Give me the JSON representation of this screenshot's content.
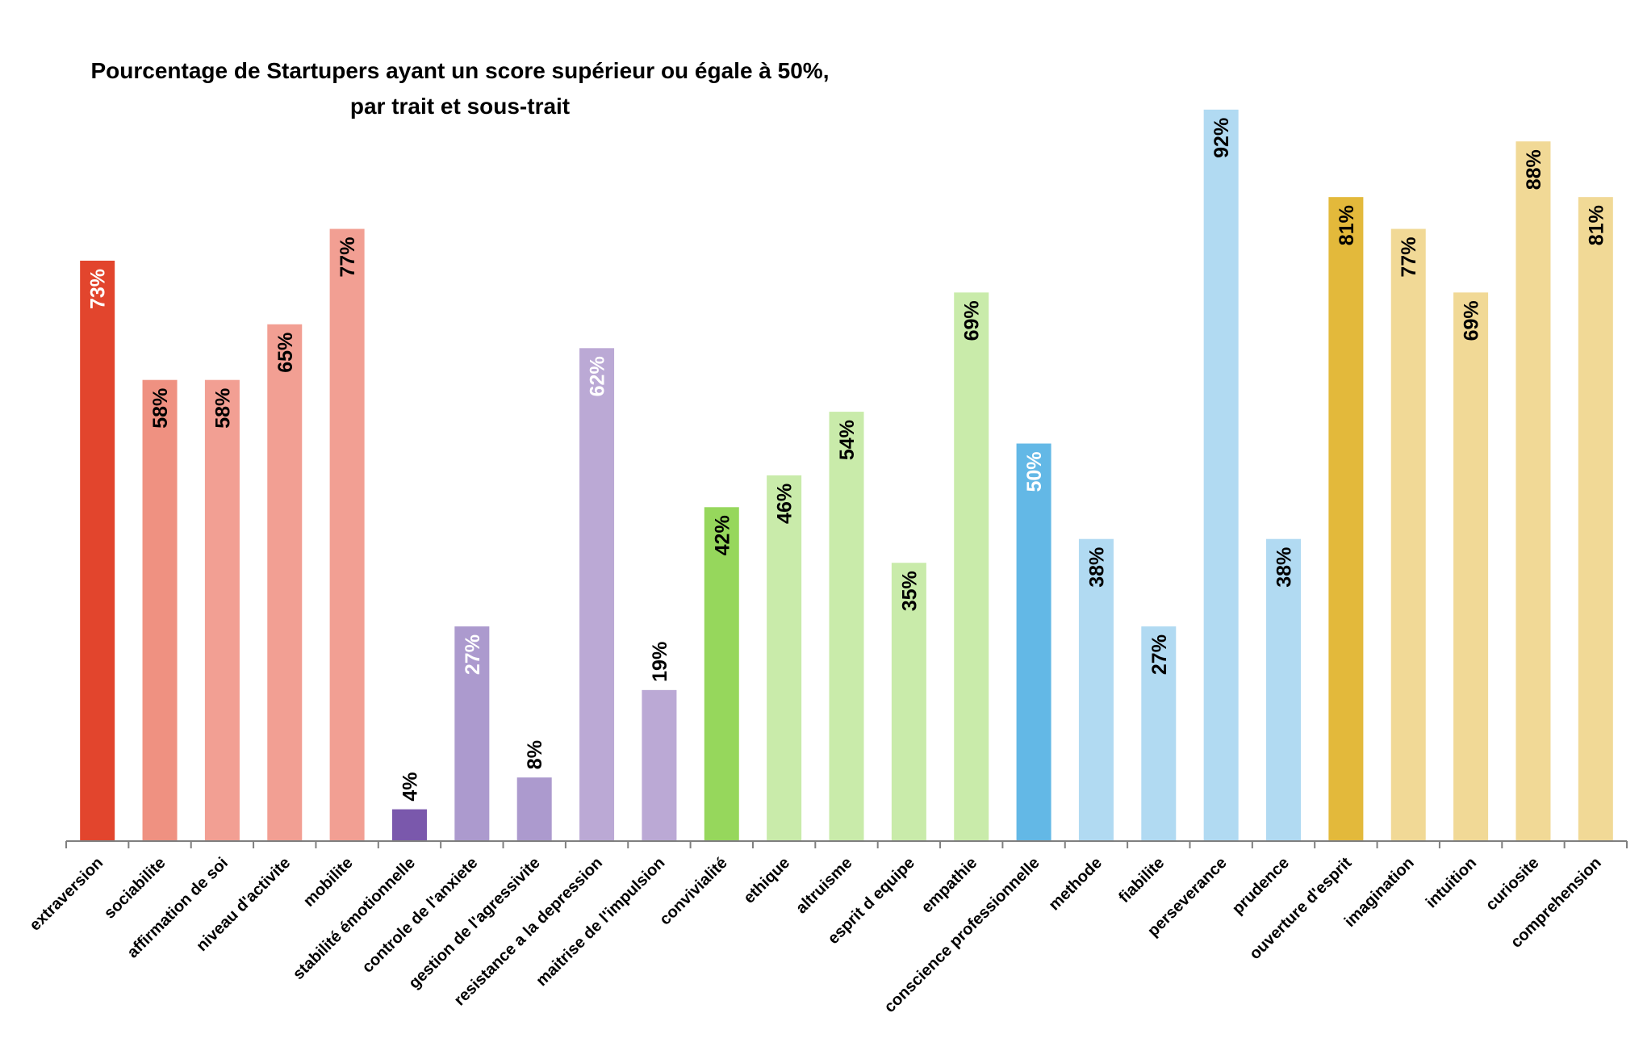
{
  "chart_data": {
    "type": "bar",
    "title": "Pourcentage de Startupers ayant un score supérieur ou égale à 50%,",
    "subtitle": "par trait et sous-trait",
    "xlabel": "",
    "ylabel": "",
    "ylim": [
      0,
      100
    ],
    "grid": false,
    "legend": "none",
    "categories": [
      "extraversion",
      "sociabilite",
      "affirmation de soi",
      "niveau d'activite",
      "mobilite",
      "stabilité émotionnelle",
      "controle de l'anxiete",
      "gestion de l'agressivite",
      "resistance a la depression",
      "maitrise de l'impulsion",
      "convivialité",
      "ethique",
      "altruisme",
      "esprit d equipe",
      "empathie",
      "conscience professionnelle",
      "methode",
      "fiabilite",
      "perseverance",
      "prudence",
      "ouverture d'esprit",
      "imagination",
      "intuition",
      "curiosite",
      "comprehension"
    ],
    "values": [
      73,
      58,
      58,
      65,
      77,
      4,
      27,
      8,
      62,
      19,
      42,
      46,
      54,
      35,
      69,
      50,
      38,
      27,
      92,
      38,
      81,
      77,
      69,
      88,
      81
    ],
    "labels": [
      "73%",
      "58%",
      "58%",
      "65%",
      "77%",
      "4%",
      "27%",
      "8%",
      "62%",
      "19%",
      "42%",
      "46%",
      "54%",
      "35%",
      "69%",
      "50%",
      "38%",
      "27%",
      "92%",
      "38%",
      "81%",
      "77%",
      "69%",
      "88%",
      "81%"
    ],
    "bar_colors": [
      "#e2452d",
      "#ef9181",
      "#f29f93",
      "#f29f93",
      "#f29f93",
      "#7a58ac",
      "#ac9ace",
      "#ac9ace",
      "#bba9d5",
      "#bba9d5",
      "#96d75c",
      "#c9ebaa",
      "#c9ebaa",
      "#c9ebaa",
      "#c9ebaa",
      "#63b8e6",
      "#b1daf2",
      "#b1daf2",
      "#b1daf2",
      "#b1daf2",
      "#e3b93b",
      "#f1d996",
      "#f1d996",
      "#f1d996",
      "#f1d996"
    ],
    "label_colors": [
      "#ffffff",
      "#000000",
      "#000000",
      "#000000",
      "#000000",
      "#000000",
      "#ffffff",
      "#000000",
      "#ffffff",
      "#000000",
      "#000000",
      "#000000",
      "#000000",
      "#000000",
      "#000000",
      "#ffffff",
      "#000000",
      "#000000",
      "#000000",
      "#000000",
      "#000000",
      "#000000",
      "#000000",
      "#000000",
      "#000000"
    ],
    "label_inside": [
      true,
      true,
      true,
      true,
      true,
      false,
      true,
      false,
      true,
      false,
      true,
      true,
      true,
      true,
      true,
      true,
      true,
      true,
      true,
      true,
      true,
      true,
      true,
      true,
      true
    ]
  }
}
